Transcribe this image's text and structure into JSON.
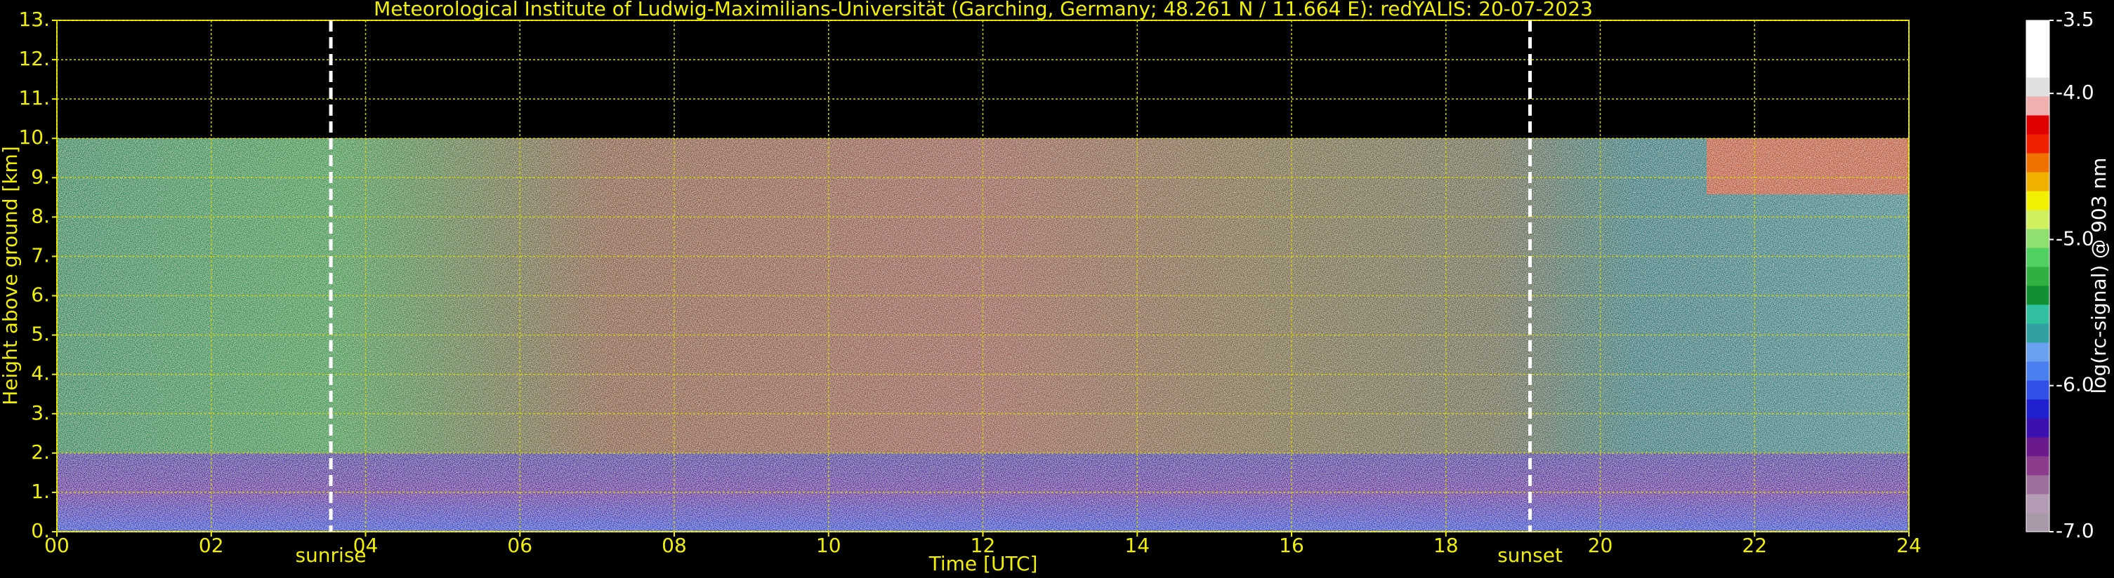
{
  "chart_data": {
    "type": "heatmap",
    "title": "Meteorological Institute of Ludwig-Maximilians-Universität (Garching, Germany; 48.261 N / 11.664 E):    redYALIS: 20-07-2023",
    "xlabel": "Time [UTC]",
    "ylabel": "Height above ground [km]",
    "xlim": [
      0,
      24
    ],
    "xticks": [
      {
        "value": 0,
        "label": "00"
      },
      {
        "value": 2,
        "label": "02"
      },
      {
        "value": 4,
        "label": "04"
      },
      {
        "value": 6,
        "label": "06"
      },
      {
        "value": 8,
        "label": "08"
      },
      {
        "value": 10,
        "label": "10"
      },
      {
        "value": 12,
        "label": "12"
      },
      {
        "value": 14,
        "label": "14"
      },
      {
        "value": 16,
        "label": "16"
      },
      {
        "value": 18,
        "label": "18"
      },
      {
        "value": 20,
        "label": "20"
      },
      {
        "value": 22,
        "label": "22"
      },
      {
        "value": 24,
        "label": "24"
      }
    ],
    "ylim": [
      0,
      13
    ],
    "yticks": [
      {
        "value": 0,
        "label": "0."
      },
      {
        "value": 1,
        "label": "1."
      },
      {
        "value": 2,
        "label": "2."
      },
      {
        "value": 3,
        "label": "3."
      },
      {
        "value": 4,
        "label": "4."
      },
      {
        "value": 5,
        "label": "5."
      },
      {
        "value": 6,
        "label": "6."
      },
      {
        "value": 7,
        "label": "7."
      },
      {
        "value": 8,
        "label": "8."
      },
      {
        "value": 9,
        "label": "9."
      },
      {
        "value": 10,
        "label": "10."
      },
      {
        "value": 11,
        "label": "11."
      },
      {
        "value": 12,
        "label": "12."
      },
      {
        "value": 13,
        "label": "13."
      }
    ],
    "grid": true,
    "annotations": [
      {
        "text": "sunrise",
        "x": 3.55
      },
      {
        "text": "sunset",
        "x": 19.09
      }
    ],
    "colorbar": {
      "label": "log(rc-signal) @ 903 nm",
      "lim": [
        -7.0,
        -3.5
      ],
      "ticks": [
        {
          "value": -7.0,
          "label": "-7.0"
        },
        {
          "value": -6.0,
          "label": "-6.0"
        },
        {
          "value": -5.0,
          "label": "-5.0"
        },
        {
          "value": -4.0,
          "label": "-4.0"
        },
        -3.5
      ],
      "colors": [
        "#a899a8",
        "#b39cb3",
        "#9c6f9c",
        "#8b3c8b",
        "#6b1a8b",
        "#3a10b0",
        "#2020d0",
        "#3050e8",
        "#4a7ff0",
        "#6aa0f0",
        "#30a0a0",
        "#30c0a0",
        "#109030",
        "#30b040",
        "#50d060",
        "#90e070",
        "#d0f060",
        "#f0f000",
        "#f0b000",
        "#f07000",
        "#f02000",
        "#e00000",
        "#f0b0b0",
        "#e0e0e0",
        "#ffffff",
        "#ffffff",
        "#ffffff"
      ]
    }
  }
}
